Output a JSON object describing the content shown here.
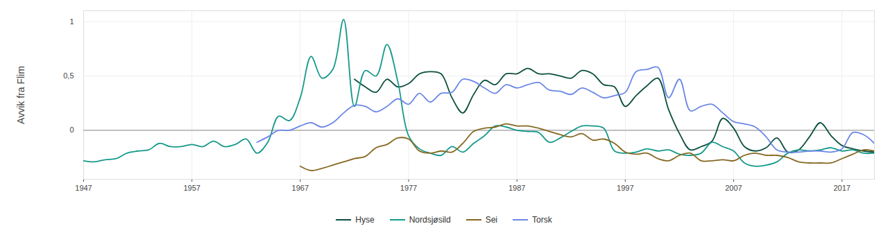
{
  "chart_data": {
    "type": "line",
    "y_label": "Avvik fra Flim",
    "x": [
      1947,
      1948,
      1949,
      1950,
      1951,
      1952,
      1953,
      1954,
      1955,
      1956,
      1957,
      1958,
      1959,
      1960,
      1961,
      1962,
      1963,
      1964,
      1965,
      1966,
      1967,
      1968,
      1969,
      1970,
      1971,
      1972,
      1973,
      1974,
      1975,
      1976,
      1977,
      1978,
      1979,
      1980,
      1981,
      1982,
      1983,
      1984,
      1985,
      1986,
      1987,
      1988,
      1989,
      1990,
      1991,
      1992,
      1993,
      1994,
      1995,
      1996,
      1997,
      1998,
      1999,
      2000,
      2001,
      2002,
      2003,
      2004,
      2005,
      2006,
      2007,
      2008,
      2009,
      2010,
      2011,
      2012,
      2013,
      2014,
      2015,
      2016,
      2017,
      2018,
      2019,
      2020
    ],
    "series": [
      {
        "name": "Hyse",
        "color": "#0b4f3f",
        "values": [
          null,
          null,
          null,
          null,
          null,
          null,
          null,
          null,
          null,
          null,
          null,
          null,
          null,
          null,
          null,
          null,
          null,
          null,
          null,
          null,
          null,
          null,
          null,
          null,
          null,
          0.47,
          0.4,
          0.35,
          0.47,
          0.4,
          0.43,
          0.52,
          0.54,
          0.52,
          0.3,
          0.16,
          0.33,
          0.46,
          0.42,
          0.52,
          0.52,
          0.57,
          0.52,
          0.52,
          0.5,
          0.48,
          0.55,
          0.52,
          0.42,
          0.4,
          0.22,
          0.32,
          0.41,
          0.48,
          0.19,
          -0.03,
          -0.18,
          -0.15,
          -0.1,
          0.11,
          0.02,
          -0.15,
          -0.19,
          -0.16,
          -0.07,
          -0.2,
          -0.18,
          -0.06,
          0.07,
          -0.05,
          -0.14,
          -0.17,
          -0.19,
          -0.2
        ]
      },
      {
        "name": "Nordsjøsild",
        "color": "#15998a",
        "values": [
          -0.28,
          -0.29,
          -0.27,
          -0.26,
          -0.21,
          -0.19,
          -0.18,
          -0.12,
          -0.15,
          -0.15,
          -0.13,
          -0.15,
          -0.1,
          -0.15,
          -0.13,
          -0.08,
          -0.21,
          -0.11,
          0.13,
          0.09,
          0.3,
          0.68,
          0.48,
          0.56,
          1.02,
          0.22,
          0.55,
          0.5,
          0.79,
          0.45,
          -0.05,
          -0.17,
          -0.21,
          -0.23,
          -0.15,
          -0.2,
          -0.12,
          -0.05,
          0.04,
          0.03,
          0.0,
          -0.01,
          -0.02,
          -0.11,
          -0.07,
          -0.01,
          0.04,
          0.04,
          0.02,
          -0.19,
          -0.21,
          -0.2,
          -0.17,
          -0.19,
          -0.18,
          -0.22,
          -0.23,
          -0.21,
          -0.11,
          -0.15,
          -0.19,
          -0.3,
          -0.33,
          -0.32,
          -0.29,
          -0.21,
          -0.18,
          -0.19,
          -0.18,
          -0.16,
          -0.19,
          -0.18,
          -0.21,
          -0.21
        ]
      },
      {
        "name": "Sei",
        "color": "#85681f",
        "values": [
          null,
          null,
          null,
          null,
          null,
          null,
          null,
          null,
          null,
          null,
          null,
          null,
          null,
          null,
          null,
          null,
          null,
          null,
          null,
          null,
          -0.33,
          -0.37,
          -0.35,
          -0.32,
          -0.29,
          -0.26,
          -0.24,
          -0.16,
          -0.13,
          -0.07,
          -0.08,
          -0.19,
          -0.21,
          -0.19,
          -0.2,
          -0.12,
          -0.01,
          0.02,
          0.03,
          0.06,
          0.04,
          0.04,
          0.02,
          -0.01,
          -0.04,
          -0.06,
          -0.03,
          -0.09,
          -0.08,
          -0.12,
          -0.2,
          -0.22,
          -0.21,
          -0.26,
          -0.28,
          -0.23,
          -0.21,
          -0.28,
          -0.28,
          -0.27,
          -0.28,
          -0.23,
          -0.21,
          -0.23,
          -0.23,
          -0.25,
          -0.29,
          -0.3,
          -0.3,
          -0.3,
          -0.26,
          -0.22,
          -0.18,
          -0.19
        ]
      },
      {
        "name": "Torsk",
        "color": "#6b87e6",
        "values": [
          null,
          null,
          null,
          null,
          null,
          null,
          null,
          null,
          null,
          null,
          null,
          null,
          null,
          null,
          null,
          null,
          -0.11,
          -0.06,
          0.0,
          0.0,
          0.04,
          0.07,
          0.03,
          0.07,
          0.16,
          0.23,
          0.22,
          0.17,
          0.22,
          0.29,
          0.24,
          0.34,
          0.26,
          0.34,
          0.35,
          0.47,
          0.45,
          0.39,
          0.34,
          0.42,
          0.39,
          0.42,
          0.44,
          0.37,
          0.36,
          0.33,
          0.39,
          0.35,
          0.3,
          0.32,
          0.35,
          0.54,
          0.56,
          0.58,
          0.3,
          0.47,
          0.18,
          0.22,
          0.24,
          0.16,
          0.08,
          0.06,
          0.03,
          -0.06,
          -0.18,
          -0.2,
          -0.2,
          -0.19,
          -0.19,
          -0.2,
          -0.17,
          -0.02,
          -0.04,
          -0.12
        ]
      }
    ],
    "xlim": [
      1947,
      2020
    ],
    "xticks": [
      1947,
      1957,
      1967,
      1977,
      1987,
      1997,
      2007,
      2017
    ],
    "ylim": [
      -0.45,
      1.1
    ],
    "yticks": [
      0,
      {
        "value": 0.5,
        "label": "0,5"
      },
      1
    ],
    "grid": true,
    "legend": "bottom"
  }
}
